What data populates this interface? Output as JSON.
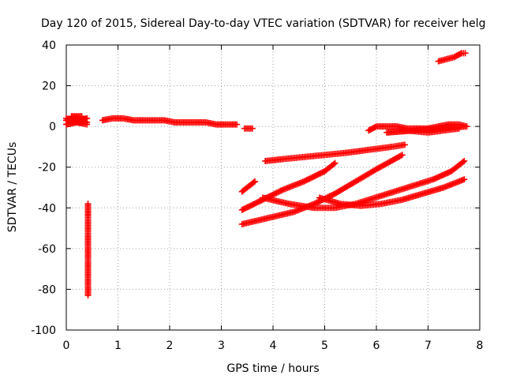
{
  "chart_data": {
    "type": "scatter",
    "title": "Day 120 of 2015, Sidereal Day-to-day VTEC variation (SDTVAR) for receiver helg",
    "xlabel": "GPS time / hours",
    "ylabel": "SDTVAR / TECUs",
    "xlim": [
      0,
      8
    ],
    "ylim": [
      -100,
      40
    ],
    "x_ticks": [
      0,
      1,
      2,
      3,
      4,
      5,
      6,
      7,
      8
    ],
    "y_ticks": [
      -100,
      -80,
      -60,
      -40,
      -20,
      0,
      20,
      40
    ],
    "x_tick_labels": [
      "0",
      "1",
      "2",
      "3",
      "4",
      "5",
      "6",
      "7",
      "8"
    ],
    "y_tick_labels": [
      "-100",
      "-80",
      "-60",
      "-40",
      "-20",
      "0",
      "20",
      "40"
    ],
    "grid": true,
    "legend": "none",
    "marker": "plus",
    "color": "#ff0000",
    "series": [
      {
        "points": [
          [
            0.0,
            4
          ],
          [
            0.1,
            3
          ],
          [
            0.2,
            4
          ],
          [
            0.3,
            3
          ],
          [
            0.4,
            4
          ],
          [
            0.0,
            1
          ],
          [
            0.2,
            2
          ],
          [
            0.4,
            2
          ],
          [
            0.1,
            5
          ],
          [
            0.3,
            5
          ],
          [
            0.0,
            3
          ],
          [
            0.4,
            1
          ]
        ]
      },
      {
        "points": [
          [
            0.7,
            3
          ],
          [
            0.9,
            4
          ],
          [
            1.1,
            4
          ],
          [
            1.3,
            3
          ],
          [
            1.5,
            3
          ],
          [
            1.7,
            3
          ],
          [
            1.9,
            3
          ],
          [
            2.1,
            2
          ],
          [
            2.3,
            2
          ],
          [
            2.5,
            2
          ],
          [
            2.7,
            2
          ],
          [
            2.9,
            1
          ],
          [
            3.1,
            1
          ],
          [
            3.3,
            1
          ]
        ]
      },
      {
        "points": [
          [
            3.45,
            -1
          ],
          [
            3.6,
            -1
          ]
        ]
      },
      {
        "points": [
          [
            0.42,
            -38
          ],
          [
            0.42,
            -41
          ],
          [
            0.42,
            -44
          ],
          [
            0.42,
            -69
          ],
          [
            0.42,
            -72
          ],
          [
            0.42,
            -83
          ]
        ]
      },
      {
        "points": [
          [
            3.4,
            -32
          ],
          [
            3.55,
            -29
          ],
          [
            3.65,
            -27
          ]
        ]
      },
      {
        "points": [
          [
            3.85,
            -17
          ],
          [
            4.2,
            -16
          ],
          [
            4.6,
            -15
          ],
          [
            5.0,
            -14
          ],
          [
            5.4,
            -13
          ],
          [
            5.7,
            -12
          ],
          [
            6.0,
            -11
          ],
          [
            6.3,
            -10
          ],
          [
            6.55,
            -9
          ]
        ]
      },
      {
        "points": [
          [
            3.4,
            -41
          ],
          [
            3.8,
            -36
          ],
          [
            4.2,
            -31
          ],
          [
            4.6,
            -27
          ],
          [
            5.0,
            -22
          ],
          [
            5.2,
            -18
          ]
        ]
      },
      {
        "points": [
          [
            3.4,
            -48
          ],
          [
            3.9,
            -45
          ],
          [
            4.4,
            -42
          ],
          [
            4.8,
            -38
          ],
          [
            5.2,
            -33
          ],
          [
            5.6,
            -27
          ],
          [
            6.0,
            -21
          ],
          [
            6.5,
            -14
          ]
        ]
      },
      {
        "points": [
          [
            3.8,
            -35
          ],
          [
            4.3,
            -38
          ],
          [
            4.8,
            -40
          ],
          [
            5.2,
            -40
          ],
          [
            5.6,
            -38
          ],
          [
            6.1,
            -34
          ],
          [
            6.6,
            -30
          ],
          [
            7.1,
            -26
          ],
          [
            7.45,
            -22
          ],
          [
            7.7,
            -17
          ]
        ]
      },
      {
        "points": [
          [
            4.9,
            -35
          ],
          [
            5.3,
            -38
          ],
          [
            5.7,
            -39
          ],
          [
            6.1,
            -38
          ],
          [
            6.5,
            -36
          ],
          [
            6.9,
            -33
          ],
          [
            7.3,
            -30
          ],
          [
            7.7,
            -26
          ]
        ]
      },
      {
        "points": [
          [
            5.85,
            -2
          ],
          [
            6.0,
            0
          ],
          [
            6.2,
            0
          ],
          [
            6.4,
            0
          ],
          [
            6.6,
            -1
          ],
          [
            6.8,
            -1
          ],
          [
            7.0,
            -1
          ],
          [
            7.2,
            0
          ],
          [
            7.4,
            1
          ],
          [
            7.6,
            1
          ],
          [
            7.75,
            0
          ],
          [
            6.2,
            -3
          ],
          [
            6.6,
            -2
          ],
          [
            7.0,
            -3
          ],
          [
            7.3,
            -2
          ],
          [
            7.6,
            -1
          ]
        ]
      },
      {
        "points": [
          [
            7.2,
            32
          ],
          [
            7.35,
            33
          ],
          [
            7.5,
            34
          ],
          [
            7.65,
            36
          ],
          [
            7.72,
            36
          ]
        ]
      }
    ]
  }
}
